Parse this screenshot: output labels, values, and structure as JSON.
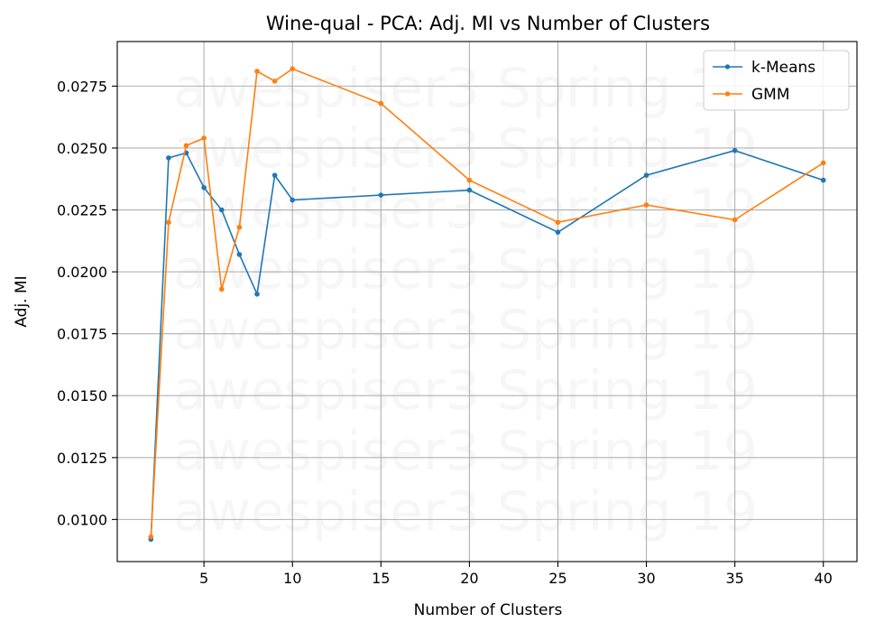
{
  "chart_data": {
    "type": "line",
    "title": "Wine-qual - PCA: Adj. MI vs Number of Clusters",
    "xlabel": "Number of Clusters",
    "ylabel": "Adj. MI",
    "xlim": [
      0.1,
      41.9
    ],
    "ylim": [
      0.0083,
      0.0293
    ],
    "xticks": [
      5,
      10,
      15,
      20,
      25,
      30,
      35,
      40
    ],
    "xtick_labels": [
      "5",
      "10",
      "15",
      "20",
      "25",
      "30",
      "35",
      "40"
    ],
    "yticks": [
      0.01,
      0.0125,
      0.015,
      0.0175,
      0.02,
      0.0225,
      0.025,
      0.0275
    ],
    "ytick_labels": [
      "0.0100",
      "0.0125",
      "0.0150",
      "0.0175",
      "0.0200",
      "0.0225",
      "0.0250",
      "0.0275"
    ],
    "grid": true,
    "legend_position": "top-right",
    "watermark": "awespiser3 Spring 19",
    "series": [
      {
        "name": "k-Means",
        "color": "#1f77b4",
        "x": [
          2,
          3,
          4,
          5,
          6,
          7,
          8,
          9,
          10,
          15,
          20,
          25,
          30,
          35,
          40
        ],
        "y": [
          0.0092,
          0.0246,
          0.0248,
          0.0234,
          0.0225,
          0.0207,
          0.0191,
          0.0239,
          0.0229,
          0.0231,
          0.0233,
          0.0216,
          0.0239,
          0.0249,
          0.0237
        ]
      },
      {
        "name": "GMM",
        "color": "#ff7f0e",
        "x": [
          2,
          3,
          4,
          5,
          6,
          7,
          8,
          9,
          10,
          15,
          20,
          25,
          30,
          35,
          40
        ],
        "y": [
          0.0093,
          0.022,
          0.0251,
          0.0254,
          0.0193,
          0.0218,
          0.0281,
          0.0277,
          0.0282,
          0.0268,
          0.0237,
          0.022,
          0.0227,
          0.0221,
          0.0244
        ]
      }
    ]
  }
}
